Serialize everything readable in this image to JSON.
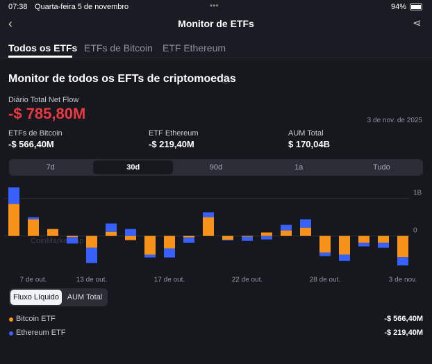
{
  "status": {
    "time": "07:38",
    "date": "Quarta-feira 5 de novembro",
    "battery": "94%"
  },
  "nav": {
    "title": "Monitor de ETFs"
  },
  "tabs": [
    "Todos os ETFs",
    "ETFs de Bitcoin",
    "ETF Ethereum"
  ],
  "heading": "Monitor de todos os EFTs de criptomoedas",
  "summary": {
    "label": "Diário Total Net Flow",
    "value": "-$ 785,80M",
    "date": "3 de nov. de 2025"
  },
  "stats": [
    {
      "label": "ETFs de Bitcoin",
      "value": "-$ 566,40M"
    },
    {
      "label": "ETF Ethereum",
      "value": "-$ 219,40M"
    },
    {
      "label": "AUM Total",
      "value": "$ 170,04B"
    }
  ],
  "ranges": [
    "7d",
    "30d",
    "90d",
    "1a",
    "Tudo"
  ],
  "toggles": [
    "Fluxo Líquido",
    "AUM Total"
  ],
  "breakdown": [
    "-$ 566,40M",
    "-$ 219,40M"
  ],
  "chart_data": {
    "type": "stacked_bar",
    "watermark": "CoinMarketCap",
    "categories": [
      null,
      "7 de out.",
      null,
      null,
      "13 de out.",
      null,
      null,
      null,
      "17 de out.",
      null,
      null,
      null,
      "22 de out.",
      null,
      null,
      null,
      "28 de out.",
      null,
      null,
      null,
      "3 de nov."
    ],
    "series": [
      {
        "name": "Bitcoin ETF",
        "color": "#f7931a",
        "values": [
          852,
          444,
          185,
          -30,
          -315,
          111,
          -111,
          -500,
          -333,
          -37,
          500,
          -100,
          -20,
          93,
          148,
          222,
          -444,
          -500,
          -185,
          -185,
          -566.4
        ]
      },
      {
        "name": "Ethereum ETF",
        "color": "#3861fb",
        "values": [
          444,
          56,
          0,
          -170,
          -407,
          222,
          185,
          -74,
          -241,
          -148,
          130,
          -20,
          -111,
          -93,
          148,
          222,
          -93,
          -167,
          -93,
          -130,
          -219.4
        ]
      }
    ],
    "ylim": [
      -950,
      1400
    ],
    "yticks": [
      {
        "value": 1000,
        "label": "1B"
      },
      {
        "value": 0,
        "label": "0"
      }
    ],
    "grid": true
  }
}
